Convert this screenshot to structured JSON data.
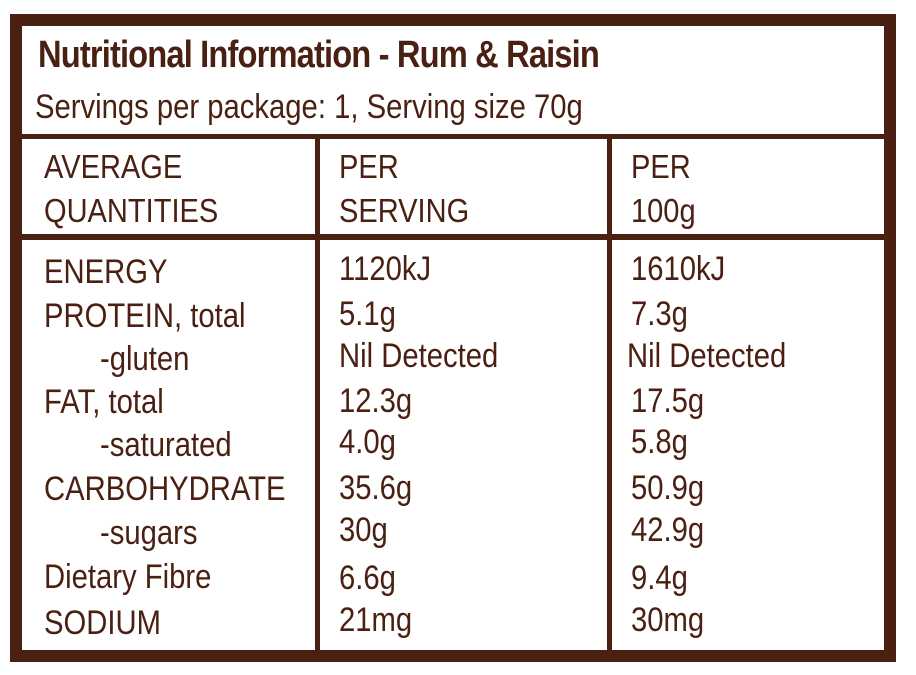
{
  "colors": {
    "brown": "#4a2012",
    "background": "#ffffff"
  },
  "header": {
    "title": "Nutritional Information - Rum & Raisin",
    "subtitle": "Servings per package: 1, Serving size 70g"
  },
  "columns": {
    "col1_line1": "AVERAGE",
    "col1_line2": "QUANTITIES",
    "col2_line1": "PER",
    "col2_line2": "SERVING",
    "col3_line1": "PER",
    "col3_line2": "100g"
  },
  "rows": [
    {
      "name": "ENERGY",
      "per_serving": "1120kJ",
      "per_100g": "1610kJ"
    },
    {
      "name": "PROTEIN, total",
      "per_serving": "5.1g",
      "per_100g": "7.3g"
    },
    {
      "name": "-gluten",
      "per_serving": "Nil Detected",
      "per_100g": "Nil Detected"
    },
    {
      "name": "FAT, total",
      "per_serving": "12.3g",
      "per_100g": "17.5g"
    },
    {
      "name": "-saturated",
      "per_serving": "4.0g",
      "per_100g": "5.8g"
    },
    {
      "name": "CARBOHYDRATE",
      "per_serving": "35.6g",
      "per_100g": "50.9g"
    },
    {
      "name": "-sugars",
      "per_serving": "30g",
      "per_100g": "42.9g"
    },
    {
      "name": "Dietary Fibre",
      "per_serving": "6.6g",
      "per_100g": "9.4g"
    },
    {
      "name": "SODIUM",
      "per_serving": "21mg",
      "per_100g": "30mg"
    }
  ]
}
